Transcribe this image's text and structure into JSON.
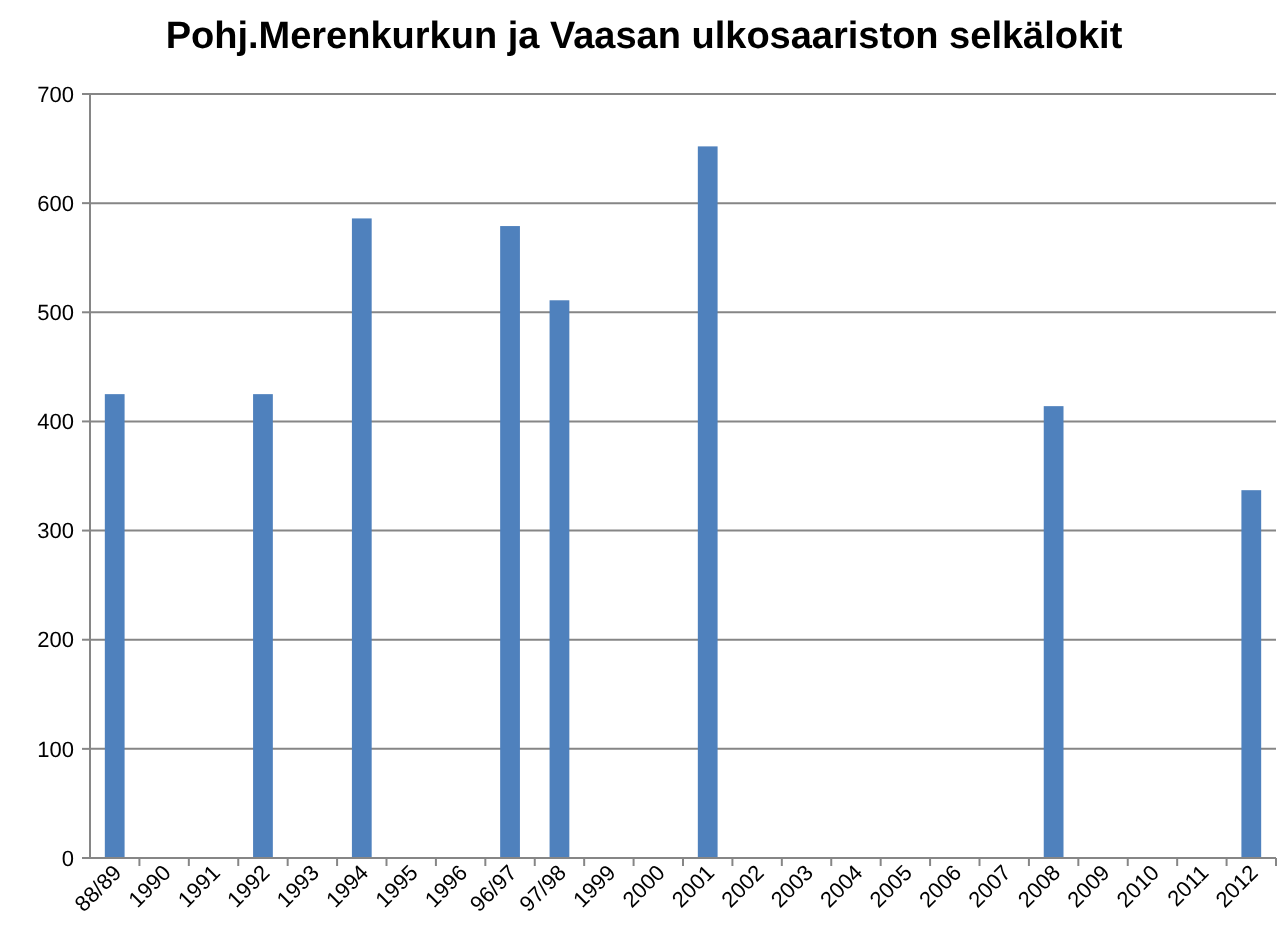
{
  "chart_data": {
    "type": "bar",
    "title": "Pohj.Merenkurkun ja Vaasan ulkosaariston selkälokit",
    "categories": [
      "88/89",
      "1990",
      "1991",
      "1992",
      "1993",
      "1994",
      "1995",
      "1996",
      "96/97",
      "97/98",
      "1999",
      "2000",
      "2001",
      "2002",
      "2003",
      "2004",
      "2005",
      "2006",
      "2007",
      "2008",
      "2009",
      "2010",
      "2011",
      "2012"
    ],
    "values": [
      425,
      null,
      null,
      425,
      null,
      586,
      null,
      null,
      579,
      511,
      null,
      null,
      652,
      null,
      null,
      null,
      null,
      null,
      null,
      414,
      null,
      null,
      null,
      337
    ],
    "color": "#4f81bd",
    "ylim": [
      0,
      700
    ],
    "yticks": [
      0,
      100,
      200,
      300,
      400,
      500,
      600,
      700
    ],
    "grid": "y"
  }
}
